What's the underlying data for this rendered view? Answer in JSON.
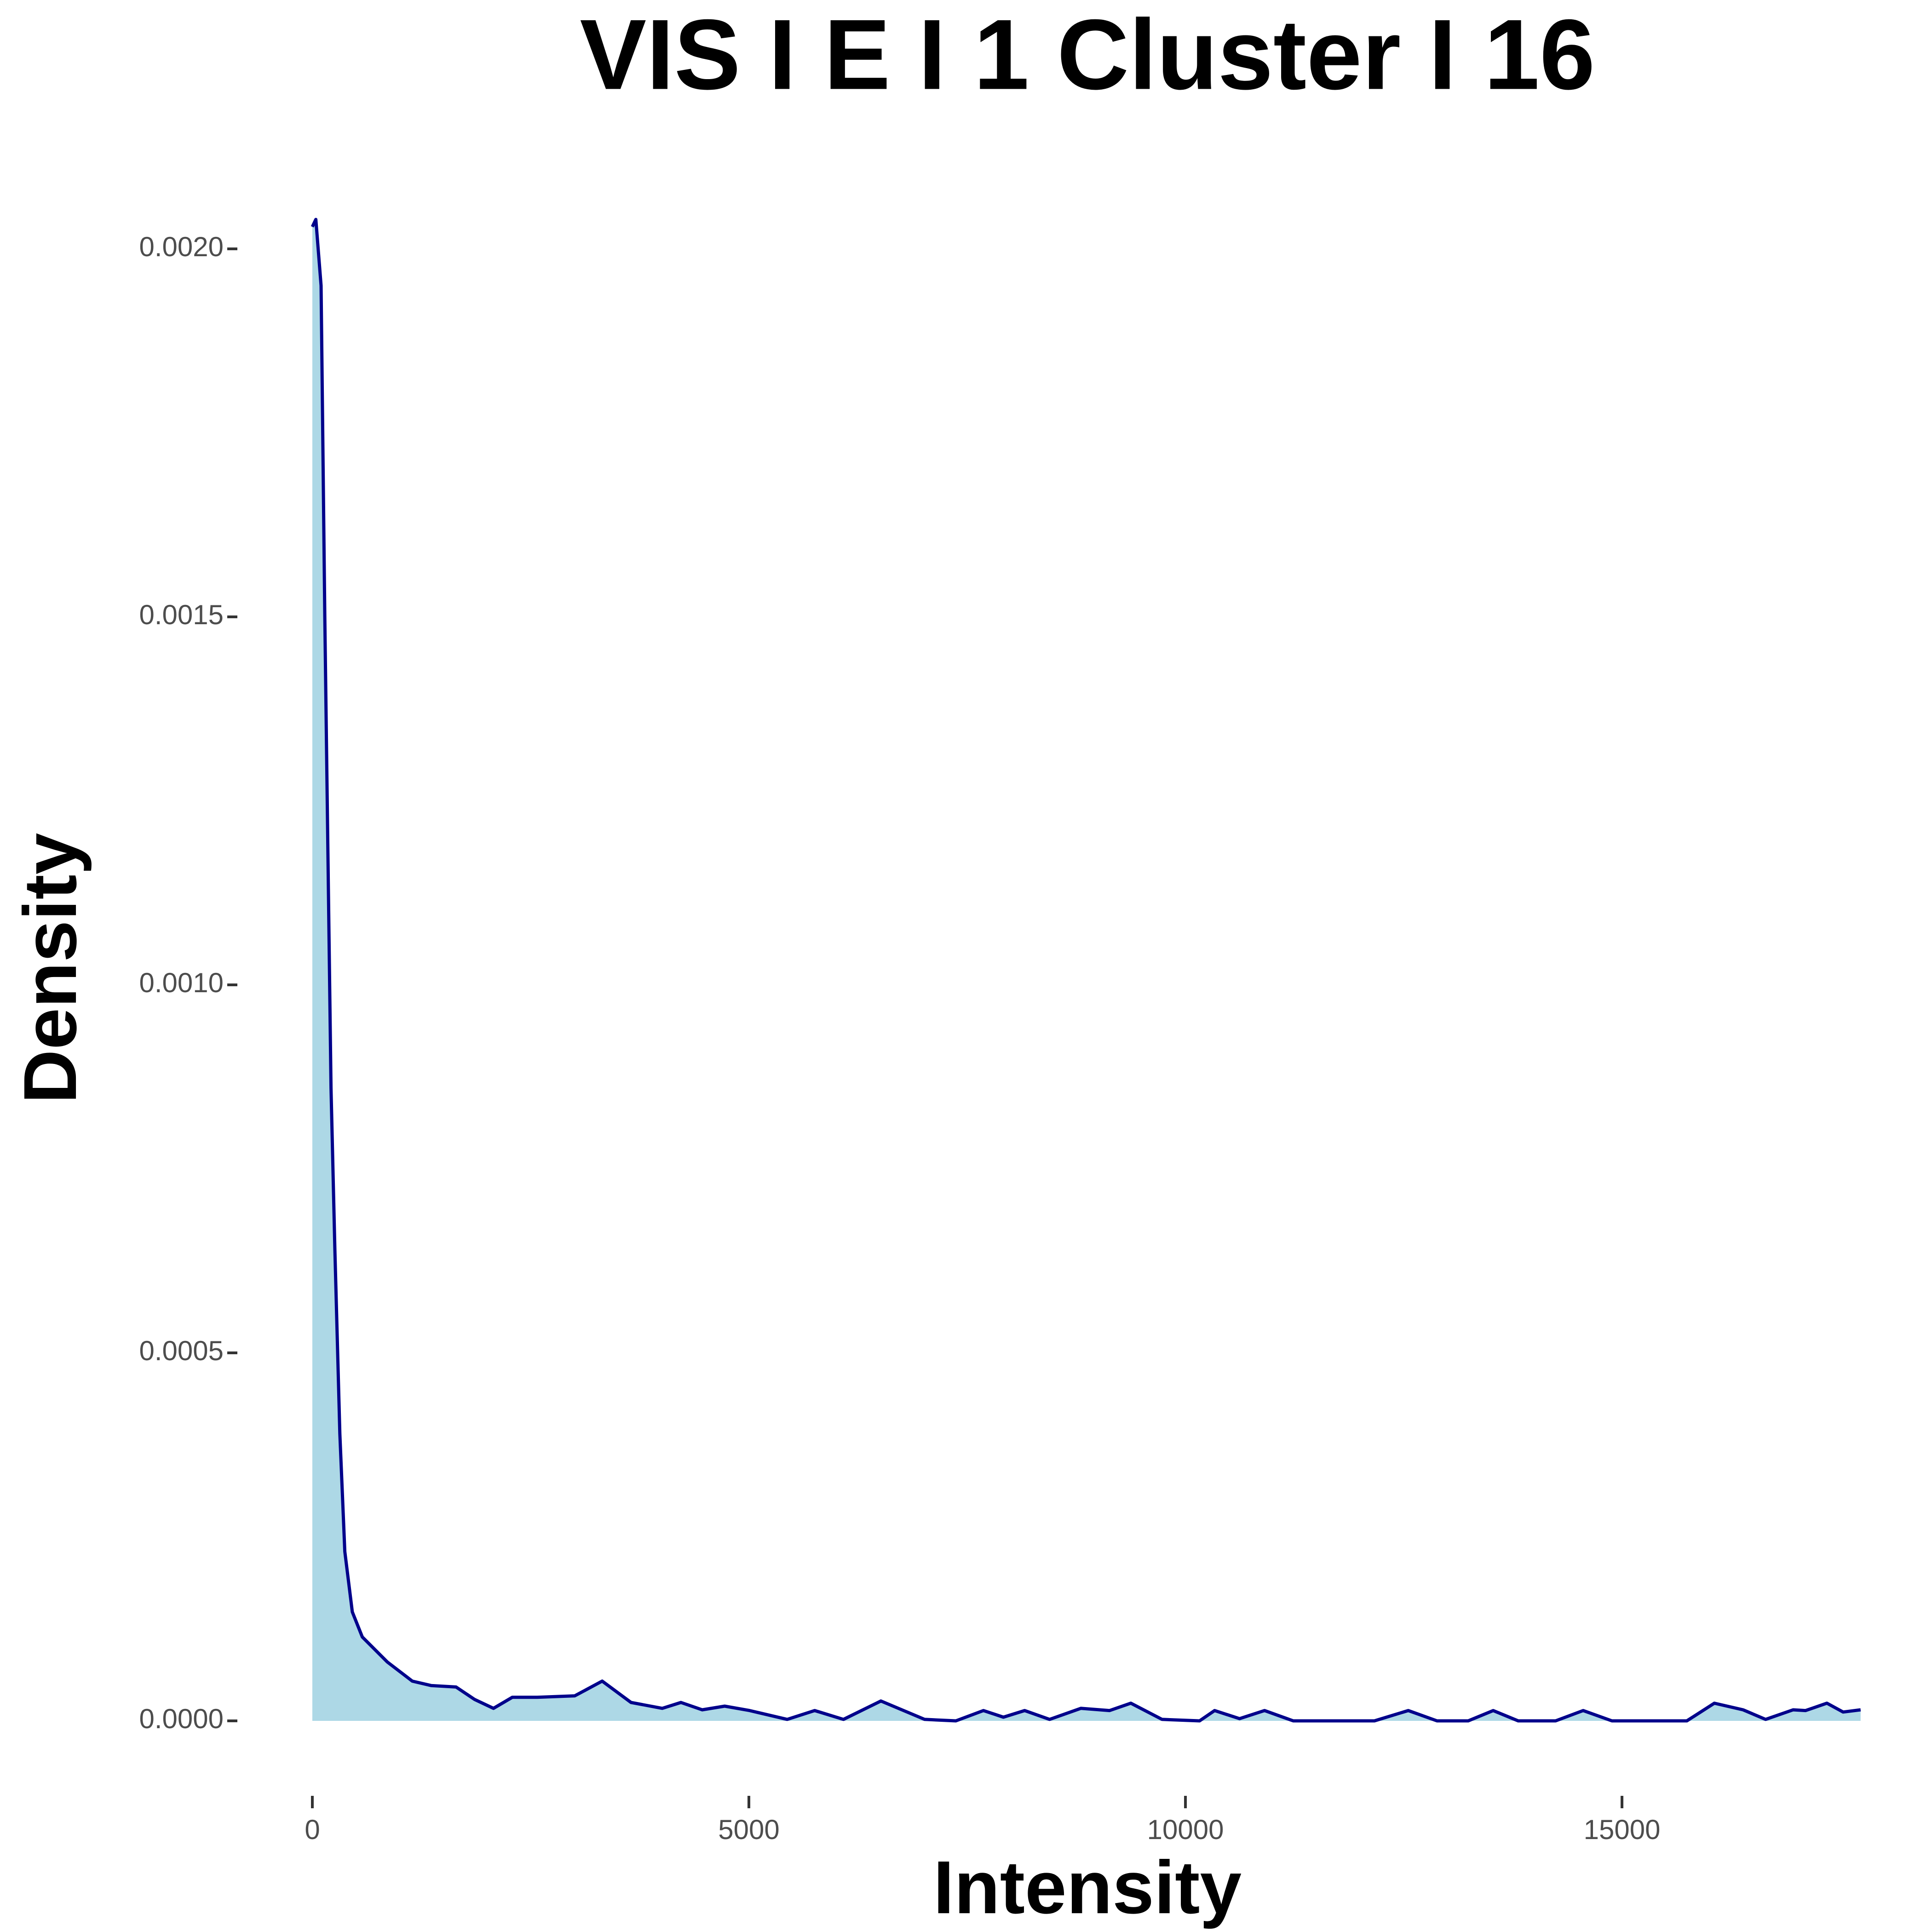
{
  "chart_data": {
    "type": "area",
    "title": "VIS I E I 1 Cluster I  16",
    "x_label": "Intensity",
    "y_label": "Density",
    "fill_color": "#add8e6",
    "line_color": "#00008b",
    "grid": false,
    "xlim": [
      0,
      17750
    ],
    "ylim": [
      -0.00017,
      0.00209
    ],
    "xticks": [
      0,
      5000,
      10000,
      15000
    ],
    "yticks": [
      {
        "value": 0,
        "label": "0.0000"
      },
      {
        "value": 0.0005,
        "label": "0.0005"
      },
      {
        "value": 0.001,
        "label": "0.0010"
      },
      {
        "value": 0.0015,
        "label": "0.0015"
      },
      {
        "value": 0.002,
        "label": "0.0020"
      }
    ],
    "x": [
      0,
      40,
      100,
      143,
      214,
      258,
      315,
      372,
      458,
      572,
      859,
      1145,
      1360,
      1646,
      1860,
      2075,
      2290,
      2576,
      3006,
      3320,
      3650,
      4008,
      4222,
      4465,
      4723,
      5009,
      5439,
      5754,
      6083,
      6512,
      7013,
      7371,
      7686,
      7915,
      8158,
      8444,
      8802,
      9131,
      9375,
      9732,
      10162,
      10334,
      10620,
      10906,
      11235,
      12165,
      12552,
      12881,
      13239,
      13525,
      13811,
      14240,
      14555,
      14885,
      15743,
      16058,
      16387,
      16645,
      16960,
      17103,
      17347,
      17533,
      17733
    ],
    "values": [
      0.00203,
      0.00204,
      0.00195,
      0.0015,
      0.00086,
      0.00064,
      0.00039,
      0.00023,
      0.000148,
      0.000114,
      8e-05,
      5.4e-05,
      4.8e-05,
      4.6e-05,
      2.9e-05,
      1.7e-05,
      3.2e-05,
      3.2e-05,
      3.4e-05,
      5.4e-05,
      2.5e-05,
      1.7e-05,
      2.5e-05,
      1.5e-05,
      2e-05,
      1.4e-05,
      2e-06,
      1.4e-05,
      2e-06,
      2.7e-05,
      2e-06,
      0,
      1.4e-05,
      5e-06,
      1.4e-05,
      2e-06,
      1.7e-05,
      1.4e-05,
      2.4e-05,
      2e-06,
      0,
      1.4e-05,
      3e-06,
      1.4e-05,
      0,
      0,
      1.4e-05,
      0,
      0,
      1.4e-05,
      0,
      0,
      1.4e-05,
      0,
      0,
      2.4e-05,
      1.5e-05,
      2e-06,
      1.5e-05,
      1.4e-05,
      2.4e-05,
      1.2e-05,
      1.5e-05
    ]
  }
}
